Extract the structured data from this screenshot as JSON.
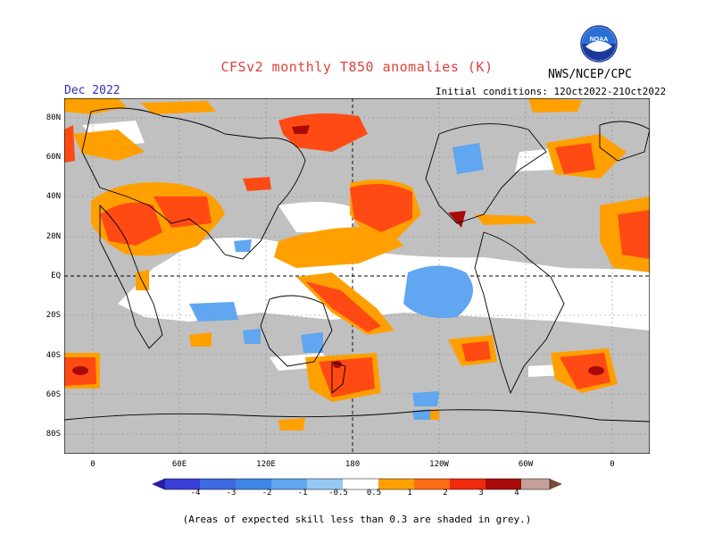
{
  "header": {
    "title": "CFSv2 monthly T850 anomalies (K)",
    "month": "Dec 2022",
    "agency": "NWS/NCEP/CPC",
    "initial_conditions": "Initial conditions: 12Oct2022-21Oct2022",
    "logo_text": "NOAA"
  },
  "axes": {
    "lat_labels": [
      "80N",
      "60N",
      "40N",
      "20N",
      "EQ",
      "20S",
      "40S",
      "60S",
      "80S"
    ],
    "lon_labels": [
      "0",
      "60E",
      "120E",
      "180",
      "120W",
      "60W",
      "0"
    ]
  },
  "colorbar": {
    "labels": [
      "-4",
      "-3",
      "-2",
      "-1",
      "-0.5",
      "0.5",
      "1",
      "2",
      "3",
      "4"
    ],
    "colors": [
      "#2a1aa8",
      "#3a3fd8",
      "#3d86e6",
      "#60a6f0",
      "#96c8f4",
      "#ffffff",
      "#ffa000",
      "#ff6a14",
      "#f02a0a",
      "#a80a0a",
      "#c4a098",
      "#7a4a3a"
    ]
  },
  "footnote": "(Areas of expected skill less than 0.3 are shaded in grey.)",
  "palette": {
    "grey_skill": "#c0c0c0",
    "white": "#ffffff",
    "title_color": "#e0403a"
  }
}
